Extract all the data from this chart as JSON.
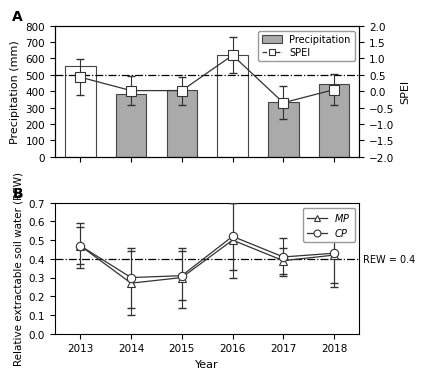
{
  "years": [
    2013,
    2014,
    2015,
    2016,
    2017,
    2018
  ],
  "precipitation": [
    555,
    383,
    408,
    620,
    335,
    445
  ],
  "bar_filled": [
    false,
    true,
    true,
    false,
    true,
    true
  ],
  "spei": [
    0.43,
    0.02,
    0.02,
    1.1,
    -0.35,
    0.05
  ],
  "spei_errors": [
    0.55,
    0.45,
    0.43,
    0.55,
    0.5,
    0.48
  ],
  "spei_dashed_line": 0.5,
  "spei_ylim": [
    -2.0,
    2.0
  ],
  "precip_ylim": [
    0,
    800
  ],
  "MP_values": [
    0.47,
    0.27,
    0.3,
    0.5,
    0.39,
    0.42
  ],
  "MP_errors": [
    0.12,
    0.17,
    0.16,
    0.2,
    0.07,
    0.15
  ],
  "CP_values": [
    0.47,
    0.3,
    0.31,
    0.52,
    0.41,
    0.43
  ],
  "CP_errors": [
    0.1,
    0.16,
    0.13,
    0.18,
    0.1,
    0.18
  ],
  "rew_dashed_line": 0.4,
  "rew_ylim": [
    0.0,
    0.7
  ],
  "bar_color": "#aaaaaa",
  "bar_edge_color": "#444444",
  "line_color": "#333333",
  "background_color": "#ffffff",
  "panel_a_label": "A",
  "panel_b_label": "B",
  "xlabel": "Year",
  "ylabel_a": "Precipitation (mm)",
  "ylabel_a2": "SPEI",
  "ylabel_b": "Relative extractable soil water (REW)",
  "legend_precip": "Precipitation",
  "legend_spei": "SPEI",
  "legend_MP": "MP",
  "legend_CP": "CP",
  "rew_label": "REW = 0.4"
}
